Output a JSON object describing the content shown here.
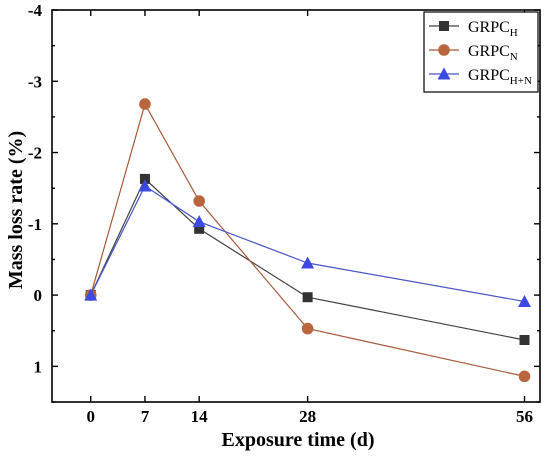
{
  "chart_data": {
    "type": "line",
    "title": "",
    "xlabel": "Exposure time (d)",
    "ylabel": "Mass loss rate (%)",
    "x": [
      0,
      7,
      14,
      28,
      56
    ],
    "xticks": [
      0,
      7,
      14,
      28,
      56
    ],
    "xlim": [
      -5,
      58
    ],
    "ylim": [
      1.5,
      -4
    ],
    "y_inverted": true,
    "yticks": [
      1,
      0,
      -1,
      -2,
      -3,
      -4
    ],
    "ytick_labels": [
      "1",
      "0",
      "-1",
      "-2",
      "-3",
      "-4"
    ],
    "grid": false,
    "legend_position": "top-right",
    "series": [
      {
        "name": "GRPCH",
        "name_base": "GRPC",
        "name_sub": "H",
        "marker": "square",
        "color": "#333333",
        "line_color": "#404040",
        "values": [
          0,
          -1.63,
          -0.93,
          0.03,
          0.63
        ]
      },
      {
        "name": "GRPCN",
        "name_base": "GRPC",
        "name_sub": "N",
        "marker": "circle",
        "color": "#b9663f",
        "line_color": "#a55a3a",
        "values": [
          0,
          -2.68,
          -1.32,
          0.47,
          1.14
        ]
      },
      {
        "name": "GRPCH+N",
        "name_base": "GRPC",
        "name_sub": "H+N",
        "marker": "triangle",
        "color": "#3d49e3",
        "line_color": "#4a56c8",
        "values": [
          0,
          -1.53,
          -1.03,
          -0.45,
          0.09
        ]
      }
    ]
  }
}
